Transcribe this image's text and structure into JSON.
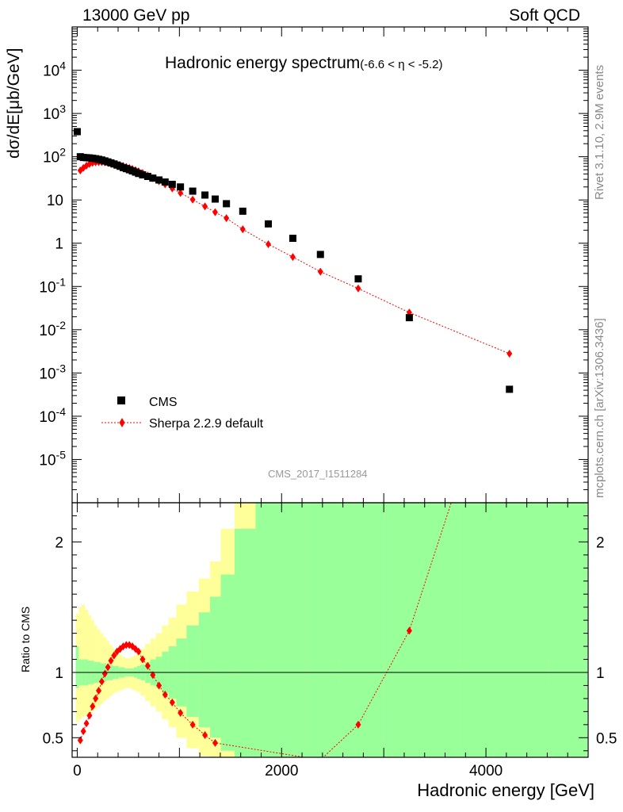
{
  "header": {
    "left": "13000 GeV pp",
    "right": "Soft QCD"
  },
  "side_text": {
    "rivet": "Rivet 3.1.10,  2.9M events",
    "mcplots": "mcplots.cern.ch [arXiv:1306.3436]"
  },
  "watermark": "CMS_2017_I1511284",
  "chart_data": [
    {
      "type": "scatter",
      "panel": "main",
      "title": "Hadronic energy spectrum",
      "title_suffix": "(-6.6 < η < -5.2)",
      "ylabel": "dσ/dE[μb/GeV]",
      "yscale": "log",
      "ylim": [
        1e-06,
        100000.0
      ],
      "xlim": [
        -50,
        5000
      ],
      "y_tick_labels": [
        "10^4",
        "10^3",
        "10^2",
        "10",
        "1",
        "10^-1",
        "10^-2",
        "10^-3",
        "10^-4",
        "10^-5"
      ],
      "legend_position": "bottom-left",
      "series": [
        {
          "name": "CMS",
          "color": "#000000",
          "marker": "square",
          "x": [
            0,
            30,
            60,
            90,
            120,
            150,
            180,
            210,
            240,
            270,
            300,
            330,
            360,
            390,
            420,
            450,
            480,
            510,
            540,
            570,
            600,
            640,
            690,
            740,
            800,
            860,
            930,
            1010,
            1130,
            1250,
            1350,
            1460,
            1620,
            1870,
            2110,
            2380,
            2750,
            3250,
            4230
          ],
          "y": [
            380,
            100,
            96,
            95,
            94,
            92,
            90,
            87,
            84,
            80,
            76,
            72,
            68,
            64,
            60,
            56,
            53,
            50,
            47,
            44,
            41,
            38,
            35,
            32,
            29,
            26,
            23,
            20,
            16,
            13,
            10.5,
            8.2,
            5.5,
            2.8,
            1.3,
            0.55,
            0.15,
            0.019,
            0.00042
          ]
        },
        {
          "name": "Sherpa 2.2.9 default",
          "color": "#ff0000",
          "marker": "diamond",
          "linestyle": "dotted",
          "x": [
            30,
            60,
            90,
            120,
            150,
            180,
            210,
            240,
            270,
            300,
            330,
            360,
            390,
            420,
            450,
            480,
            510,
            540,
            570,
            600,
            640,
            690,
            740,
            800,
            860,
            930,
            1010,
            1130,
            1250,
            1350,
            1460,
            1620,
            1870,
            2110,
            2380,
            2750,
            3250,
            4230
          ],
          "y": [
            48,
            55,
            62,
            68,
            72,
            74,
            75,
            75,
            74,
            73,
            71,
            69,
            67,
            64,
            61,
            58,
            55,
            52,
            49,
            46,
            42,
            37,
            32,
            27,
            23,
            18.5,
            14.5,
            10.2,
            7.1,
            5.2,
            3.8,
            2.1,
            0.95,
            0.48,
            0.22,
            0.09,
            0.025,
            0.0028
          ]
        }
      ]
    },
    {
      "type": "line",
      "panel": "ratio",
      "ylabel": "Ratio to CMS",
      "xlabel": "Hadronic energy [GeV]",
      "xlim": [
        -50,
        5000
      ],
      "ylim": [
        0.35,
        2.3
      ],
      "x_tick_labels": [
        "0",
        "2000",
        "4000"
      ],
      "y_tick_labels": [
        "0.5",
        "1",
        "2"
      ],
      "reference_line": 1,
      "band_colors": {
        "inner": "#99ff99",
        "outer": "#ffff99"
      },
      "band_x": [
        0,
        30,
        60,
        90,
        120,
        150,
        180,
        210,
        240,
        270,
        300,
        330,
        360,
        390,
        420,
        450,
        480,
        510,
        540,
        570,
        600,
        640,
        690,
        740,
        800,
        860,
        930,
        1010,
        1130,
        1250,
        1350,
        1460,
        1620,
        1870,
        2110,
        2380,
        2750,
        3250,
        4230,
        4990
      ],
      "band_inner": [
        [
          0.88,
          1.2
        ],
        [
          0.9,
          1.1
        ],
        [
          0.9,
          1.1
        ],
        [
          0.9,
          1.1
        ],
        [
          0.91,
          1.09
        ],
        [
          0.91,
          1.09
        ],
        [
          0.92,
          1.08
        ],
        [
          0.92,
          1.08
        ],
        [
          0.93,
          1.07
        ],
        [
          0.93,
          1.07
        ],
        [
          0.94,
          1.06
        ],
        [
          0.94,
          1.06
        ],
        [
          0.95,
          1.05
        ],
        [
          0.95,
          1.05
        ],
        [
          0.96,
          1.04
        ],
        [
          0.96,
          1.04
        ],
        [
          0.97,
          1.03
        ],
        [
          0.97,
          1.03
        ],
        [
          0.97,
          1.03
        ],
        [
          0.96,
          1.04
        ],
        [
          0.95,
          1.05
        ],
        [
          0.94,
          1.06
        ],
        [
          0.92,
          1.08
        ],
        [
          0.9,
          1.1
        ],
        [
          0.88,
          1.12
        ],
        [
          0.84,
          1.16
        ],
        [
          0.8,
          1.2
        ],
        [
          0.74,
          1.26
        ],
        [
          0.66,
          1.36
        ],
        [
          0.58,
          1.46
        ],
        [
          0.5,
          1.58
        ],
        [
          0.4,
          1.75
        ],
        [
          0.3,
          2.1
        ],
        [
          0.25,
          2.5
        ],
        [
          0.2,
          2.6
        ],
        [
          0.15,
          2.6
        ],
        [
          0.1,
          2.6
        ],
        [
          0.1,
          2.6
        ],
        [
          0.1,
          2.6
        ],
        [
          0.1,
          2.6
        ]
      ],
      "band_outer": [
        [
          0.62,
          1.45
        ],
        [
          0.64,
          1.5
        ],
        [
          0.66,
          1.52
        ],
        [
          0.67,
          1.48
        ],
        [
          0.68,
          1.44
        ],
        [
          0.7,
          1.4
        ],
        [
          0.72,
          1.36
        ],
        [
          0.74,
          1.33
        ],
        [
          0.76,
          1.3
        ],
        [
          0.78,
          1.27
        ],
        [
          0.8,
          1.24
        ],
        [
          0.82,
          1.21
        ],
        [
          0.84,
          1.18
        ],
        [
          0.85,
          1.16
        ],
        [
          0.86,
          1.14
        ],
        [
          0.87,
          1.12
        ],
        [
          0.88,
          1.11
        ],
        [
          0.88,
          1.11
        ],
        [
          0.87,
          1.12
        ],
        [
          0.86,
          1.13
        ],
        [
          0.85,
          1.15
        ],
        [
          0.82,
          1.18
        ],
        [
          0.78,
          1.22
        ],
        [
          0.74,
          1.26
        ],
        [
          0.7,
          1.3
        ],
        [
          0.64,
          1.36
        ],
        [
          0.58,
          1.42
        ],
        [
          0.5,
          1.52
        ],
        [
          0.42,
          1.62
        ],
        [
          0.36,
          1.72
        ],
        [
          0.3,
          1.85
        ],
        [
          0.25,
          2.1
        ],
        [
          0.2,
          2.6
        ],
        [
          0.2,
          2.6
        ],
        [
          0.1,
          2.6
        ],
        [
          0.1,
          2.6
        ],
        [
          0.1,
          2.6
        ],
        [
          0.1,
          2.6
        ],
        [
          0.1,
          2.6
        ],
        [
          0.1,
          2.6
        ]
      ],
      "series": [
        {
          "name": "Sherpa 2.2.9 default",
          "color": "#ff0000",
          "marker": "diamond",
          "linestyle": "dotted",
          "x": [
            30,
            60,
            90,
            120,
            150,
            180,
            210,
            240,
            270,
            300,
            330,
            360,
            390,
            420,
            450,
            480,
            510,
            540,
            570,
            600,
            640,
            690,
            740,
            800,
            860,
            930,
            1010,
            1130,
            1250,
            1350,
            2380,
            2750,
            3250,
            3660
          ],
          "y": [
            0.48,
            0.55,
            0.61,
            0.67,
            0.74,
            0.8,
            0.86,
            0.93,
            0.99,
            1.04,
            1.09,
            1.13,
            1.16,
            1.18,
            1.2,
            1.21,
            1.21,
            1.2,
            1.18,
            1.16,
            1.1,
            1.05,
            0.98,
            0.9,
            0.83,
            0.77,
            0.69,
            0.6,
            0.52,
            0.46,
            0.33,
            0.6,
            1.32,
            2.3
          ]
        }
      ]
    }
  ]
}
